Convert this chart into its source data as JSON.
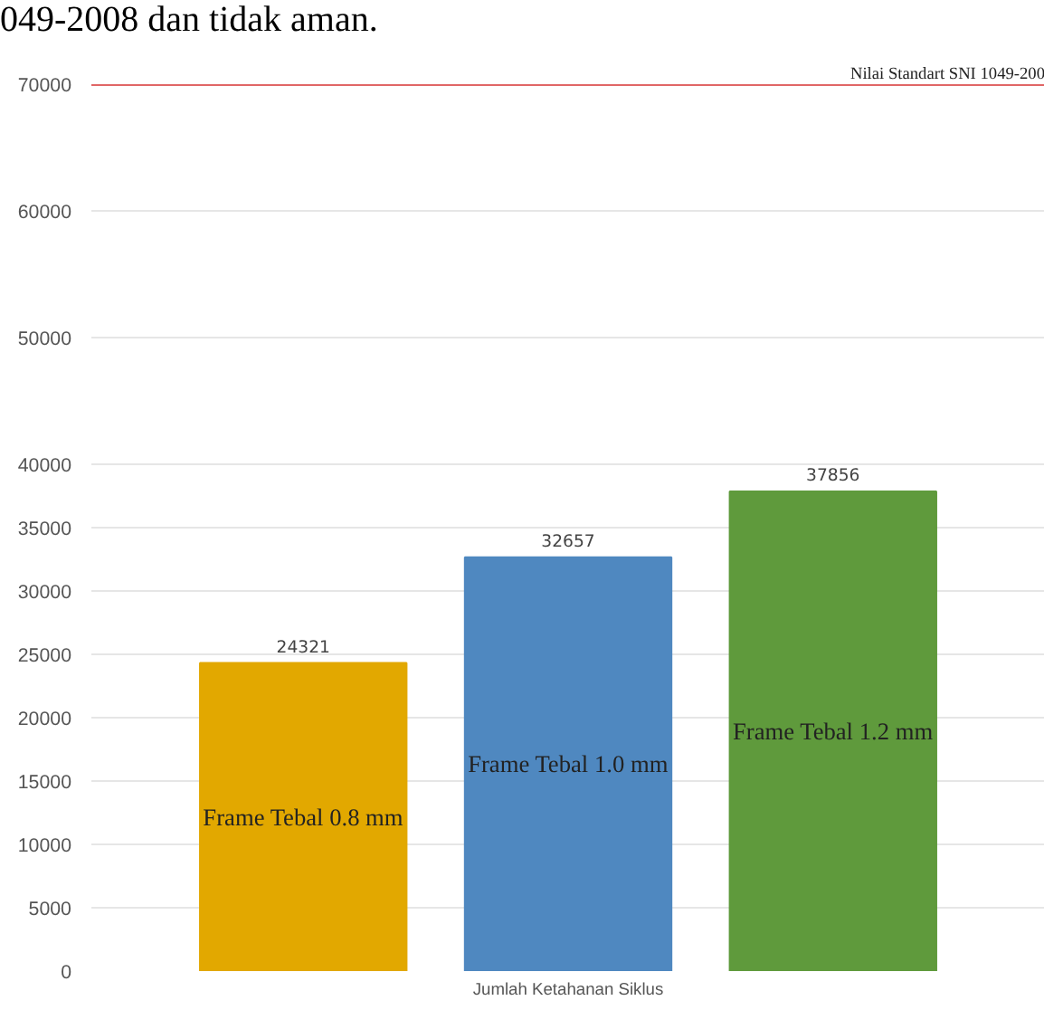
{
  "chart_data": {
    "type": "bar",
    "categories": [
      null
    ],
    "xlabel": "Jumlah Ketahanan Siklus",
    "series": [
      {
        "name": "Frame Tebal 0.8 mm",
        "color": "#e2a800",
        "values": [
          24321
        ]
      },
      {
        "name": "Frame Tebal 1.0 mm",
        "color": "#4f88c0",
        "values": [
          32657
        ]
      },
      {
        "name": "Frame Tebal 1.2 mm",
        "color": "#5f9a3c",
        "values": [
          37856
        ]
      }
    ],
    "ylim": [
      0,
      70000
    ],
    "yticks": [
      0,
      5000,
      10000,
      15000,
      20000,
      25000,
      30000,
      35000,
      40000,
      50000,
      60000,
      70000
    ],
    "grid": "y",
    "data_labels": true,
    "ref_lines": [
      {
        "axis": "y",
        "value": 70000,
        "label": "Nilai Standart SNI 1049-200",
        "color": "#e06666"
      }
    ],
    "annotations": [
      "049-2008 dan tidak aman."
    ]
  }
}
